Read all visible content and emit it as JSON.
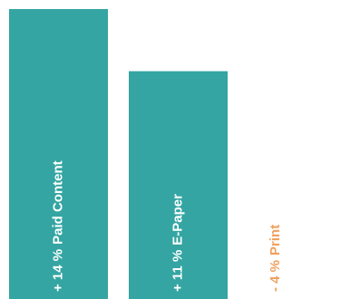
{
  "chart_data": {
    "type": "bar",
    "categories": [
      "Paid Content",
      "E-Paper",
      "Print"
    ],
    "values": [
      14,
      11,
      -4
    ],
    "value_labels": [
      "+ 14 %",
      "+ 11 %",
      "- 4 %"
    ],
    "color": "#34a5a2",
    "label_color": "#ffffff",
    "negative_label_color": "#f0a15e",
    "ylim": [
      0,
      14
    ]
  }
}
